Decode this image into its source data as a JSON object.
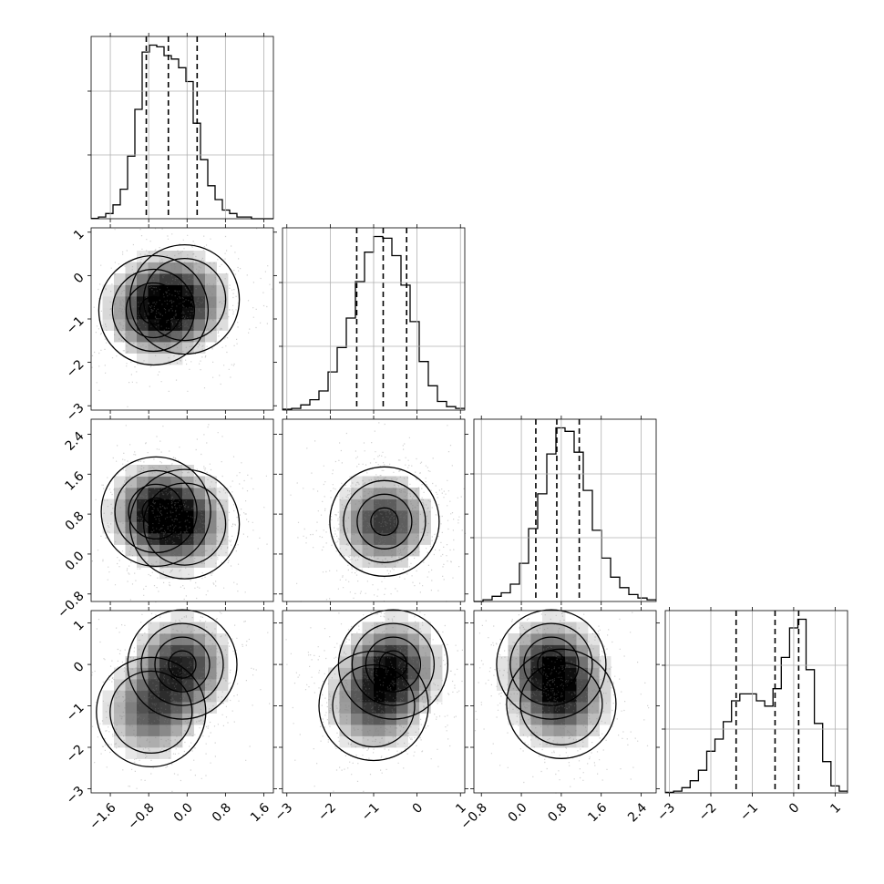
{
  "chart_data": {
    "type": "corner",
    "ndim": 4,
    "quantiles": [
      0.16,
      0.5,
      0.84
    ],
    "contour_levels": [
      0.5,
      1.0,
      1.5,
      2.0
    ],
    "colors": {
      "line": "#000000",
      "grid": "#b0b0b0",
      "density_dark": "#000000",
      "points": "#7f7f7f"
    },
    "axes": [
      {
        "range": [
          -2.0,
          1.8
        ],
        "ticks": [
          -1.6,
          -0.8,
          0.0,
          0.8,
          1.6
        ],
        "tick_labels": [
          "−1.6",
          "−0.8",
          "0.0",
          "0.8",
          "1.6"
        ]
      },
      {
        "range": [
          -3.1,
          1.1
        ],
        "ticks": [
          -3,
          -2,
          -1,
          0,
          1
        ],
        "tick_labels": [
          "−3",
          "−2",
          "−1",
          "0",
          "1"
        ]
      },
      {
        "range": [
          -0.95,
          2.7
        ],
        "ticks": [
          -0.8,
          0.0,
          0.8,
          1.6,
          2.4
        ],
        "tick_labels": [
          "−0.8",
          "0.0",
          "0.8",
          "1.6",
          "2.4"
        ]
      },
      {
        "range": [
          -3.1,
          1.3
        ],
        "ticks": [
          -3,
          -2,
          -1,
          0,
          1
        ],
        "tick_labels": [
          "−3",
          "−2",
          "−1",
          "0",
          "1"
        ]
      }
    ],
    "marginals": [
      {
        "quantile_values": [
          -0.85,
          -0.39,
          0.21
        ],
        "bin_edges_range": [
          -2.0,
          1.8
        ],
        "counts": [
          0.2,
          1,
          3,
          8,
          17,
          36,
          63,
          96,
          100,
          99,
          94,
          92,
          87,
          79,
          55,
          34,
          19,
          11,
          5,
          3,
          1,
          1,
          0,
          0,
          0
        ]
      },
      {
        "quantile_values": [
          -1.39,
          -0.78,
          -0.24
        ],
        "bin_edges_range": [
          -3.1,
          1.1
        ],
        "counts": [
          0.5,
          1,
          3,
          6,
          11,
          22,
          36,
          53,
          74,
          91,
          100,
          99,
          89,
          72,
          51,
          28,
          14,
          5,
          2,
          1
        ]
      },
      {
        "quantile_values": [
          0.29,
          0.71,
          1.16
        ],
        "bin_edges_range": [
          -0.95,
          2.7
        ],
        "counts": [
          0,
          1,
          3,
          5,
          10,
          22,
          42,
          62,
          85,
          100,
          98,
          86,
          64,
          41,
          25,
          14,
          8,
          4,
          2,
          1
        ]
      },
      {
        "quantile_values": [
          -1.39,
          -0.45,
          0.12
        ],
        "bin_edges_range": [
          -3.1,
          1.3
        ],
        "counts": [
          0.3,
          1,
          3,
          7,
          13,
          24,
          31,
          41,
          53,
          57,
          57,
          53,
          50,
          60,
          78,
          95,
          100,
          71,
          40,
          18,
          4,
          1
        ]
      }
    ],
    "pairs": [
      {
        "x_dim": 0,
        "y_dim": 1,
        "peaks": [
          [
            -0.7,
            -0.8
          ],
          [
            -0.05,
            -0.55
          ]
        ]
      },
      {
        "x_dim": 0,
        "y_dim": 2,
        "peaks": [
          [
            -0.65,
            0.85
          ],
          [
            -0.05,
            0.6
          ]
        ]
      },
      {
        "x_dim": 1,
        "y_dim": 2,
        "peaks": [
          [
            -0.75,
            0.65
          ]
        ]
      },
      {
        "x_dim": 0,
        "y_dim": 3,
        "peaks": [
          [
            -0.1,
            0.0
          ],
          [
            -0.75,
            -1.15
          ]
        ]
      },
      {
        "x_dim": 1,
        "y_dim": 3,
        "peaks": [
          [
            -0.55,
            0.0
          ],
          [
            -1.0,
            -1.0
          ]
        ]
      },
      {
        "x_dim": 2,
        "y_dim": 3,
        "peaks": [
          [
            0.6,
            0.0
          ],
          [
            0.8,
            -0.95
          ]
        ]
      }
    ]
  }
}
